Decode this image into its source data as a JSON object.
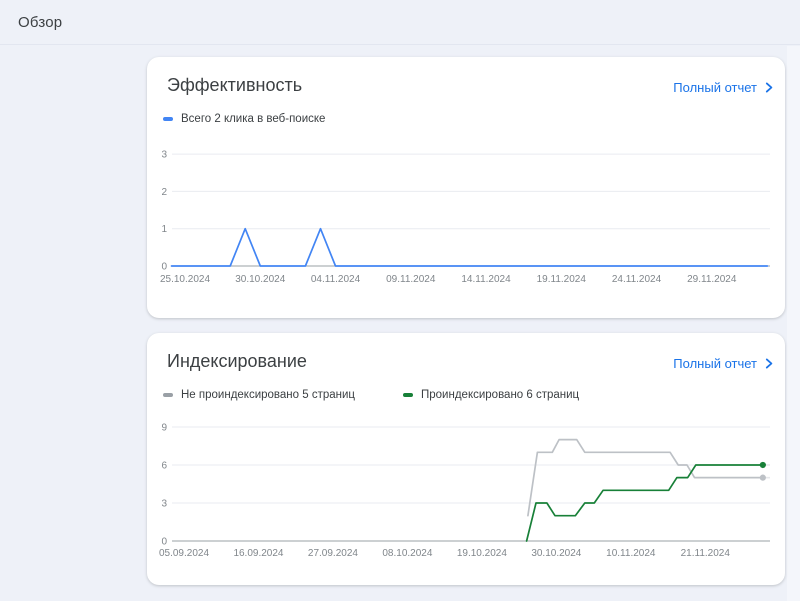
{
  "page": {
    "header_title": "Обзор",
    "background_color": "#eef1f8",
    "card_background": "#ffffff",
    "link_color": "#1a73e8"
  },
  "cards": [
    {
      "title": "Эффективность",
      "report_link_label": "Полный отчет",
      "legend": [
        {
          "label": "Всего 2 клика в веб-поиске",
          "color": "#4285f4"
        }
      ]
    },
    {
      "title": "Индексирование",
      "report_link_label": "Полный отчет",
      "legend": [
        {
          "label": "Не проиндексировано 5 страниц",
          "color": "#9aa0a6"
        },
        {
          "label": "Проиндексировано 6 страниц",
          "color": "#188038"
        }
      ]
    }
  ],
  "chart_data": [
    {
      "type": "line",
      "title": "Эффективность — клики в веб-поиске",
      "day0_date": "25.10.2024",
      "x_ticks": [
        {
          "day": 0,
          "label": "25.10.2024"
        },
        {
          "day": 5,
          "label": "30.10.2024"
        },
        {
          "day": 10,
          "label": "04.11.2024"
        },
        {
          "day": 15,
          "label": "09.11.2024"
        },
        {
          "day": 20,
          "label": "14.11.2024"
        },
        {
          "day": 25,
          "label": "19.11.2024"
        },
        {
          "day": 30,
          "label": "24.11.2024"
        },
        {
          "day": 35,
          "label": "29.11.2024"
        }
      ],
      "y_ticks": [
        0,
        1,
        2,
        3
      ],
      "ylim": [
        0,
        3
      ],
      "grid": true,
      "legend_position": "top-left",
      "total_clicks": 2,
      "clicks_by_date": [
        {
          "date": "29.10.2024",
          "value": 1
        },
        {
          "date": "03.11.2024",
          "value": 1
        }
      ],
      "series": [
        {
          "name": "Всего 2 клика в веб-поиске",
          "color": "#4285f4",
          "end_dot": false,
          "points_day_value": [
            [
              -0.9,
              0
            ],
            [
              3,
              0
            ],
            [
              4,
              1
            ],
            [
              5,
              0
            ],
            [
              8,
              0
            ],
            [
              9,
              1
            ],
            [
              10,
              0
            ],
            [
              38.7,
              0
            ]
          ]
        }
      ]
    },
    {
      "type": "line",
      "title": "Индексирование страниц",
      "day0_date": "05.09.2024",
      "x_ticks": [
        {
          "day": 0,
          "label": "05.09.2024"
        },
        {
          "day": 11,
          "label": "16.09.2024"
        },
        {
          "day": 22,
          "label": "27.09.2024"
        },
        {
          "day": 33,
          "label": "08.10.2024"
        },
        {
          "day": 44,
          "label": "19.10.2024"
        },
        {
          "day": 55,
          "label": "30.10.2024"
        },
        {
          "day": 66,
          "label": "10.11.2024"
        },
        {
          "day": 77,
          "label": "21.11.2024"
        }
      ],
      "y_ticks": [
        0,
        3,
        6,
        9
      ],
      "ylim": [
        0,
        9
      ],
      "grid": true,
      "legend_position": "top-left",
      "not_indexed_pages": 5,
      "indexed_pages": 6,
      "series": [
        {
          "name": "Не проиндексировано 5 страниц",
          "color": "#bdc1c6",
          "end_dot": true,
          "points_day_value": [
            [
              50.8,
              2
            ],
            [
              52.2,
              7
            ],
            [
              54.4,
              7
            ],
            [
              55.4,
              8
            ],
            [
              58,
              8
            ],
            [
              59.2,
              7
            ],
            [
              71.8,
              7
            ],
            [
              73,
              6
            ],
            [
              74.3,
              6
            ],
            [
              75.4,
              5
            ],
            [
              85.5,
              5
            ]
          ]
        },
        {
          "name": "Проиндексировано 6 страниц",
          "color": "#188038",
          "end_dot": true,
          "points_day_value": [
            [
              50.6,
              0
            ],
            [
              52,
              3
            ],
            [
              53.6,
              3
            ],
            [
              54.8,
              2
            ],
            [
              57.8,
              2
            ],
            [
              59.2,
              3
            ],
            [
              60.6,
              3
            ],
            [
              61.9,
              4
            ],
            [
              71.6,
              4
            ],
            [
              72.8,
              5
            ],
            [
              74.4,
              5
            ],
            [
              75.6,
              6
            ],
            [
              85.5,
              6
            ]
          ]
        }
      ]
    }
  ]
}
